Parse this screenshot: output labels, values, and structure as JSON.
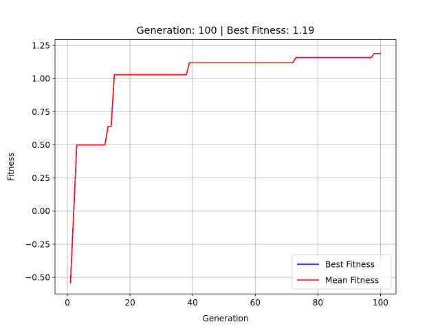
{
  "chart_data": {
    "type": "line",
    "title": "Generation: 100 | Best Fitness: 1.19",
    "xlabel": "Generation",
    "ylabel": "Fitness",
    "xlim": [
      -3.95,
      104.95
    ],
    "ylim": [
      -0.625,
      1.295
    ],
    "xticks": [
      0,
      20,
      40,
      60,
      80,
      100
    ],
    "yticks": [
      -0.5,
      -0.25,
      0.0,
      0.25,
      0.5,
      0.75,
      1.0,
      1.25
    ],
    "xtick_labels": [
      "0",
      "20",
      "40",
      "60",
      "80",
      "100"
    ],
    "ytick_labels": [
      "−0.50",
      "−0.25",
      "0.00",
      "0.25",
      "0.50",
      "0.75",
      "1.00",
      "1.25"
    ],
    "grid": true,
    "legend_position": "lower-right",
    "series": [
      {
        "name": "Best Fitness",
        "color": "#0000ff",
        "x": [
          1,
          3,
          12,
          13,
          14,
          15,
          38,
          39,
          72,
          73,
          97,
          98,
          100
        ],
        "y": [
          -0.54,
          0.5,
          0.5,
          0.64,
          0.64,
          1.03,
          1.03,
          1.12,
          1.12,
          1.16,
          1.16,
          1.19,
          1.19
        ]
      },
      {
        "name": "Mean Fitness",
        "color": "#ff0000",
        "x": [
          1,
          3,
          12,
          13,
          14,
          15,
          38,
          39,
          72,
          73,
          97,
          98,
          100
        ],
        "y": [
          -0.54,
          0.5,
          0.5,
          0.64,
          0.64,
          1.03,
          1.03,
          1.12,
          1.12,
          1.16,
          1.16,
          1.19,
          1.19
        ]
      }
    ]
  }
}
